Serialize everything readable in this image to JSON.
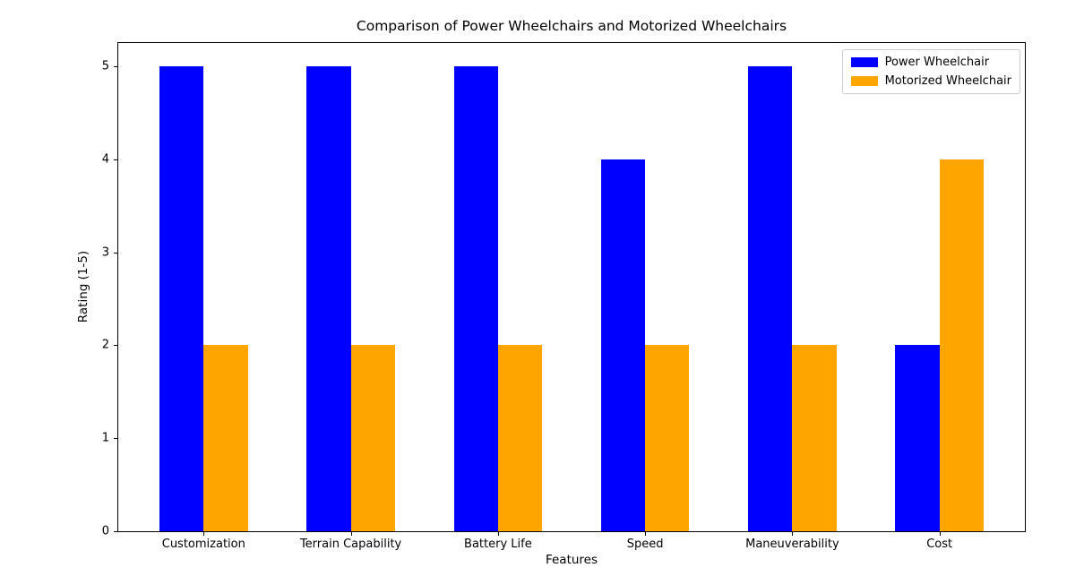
{
  "chart_data": {
    "type": "bar",
    "title": "Comparison of Power Wheelchairs and Motorized Wheelchairs",
    "xlabel": "Features",
    "ylabel": "Rating (1-5)",
    "categories": [
      "Customization",
      "Terrain Capability",
      "Battery Life",
      "Speed",
      "Maneuverability",
      "Cost"
    ],
    "series": [
      {
        "name": "Power Wheelchair",
        "color": "#0000ff",
        "values": [
          5,
          5,
          5,
          4,
          5,
          2
        ]
      },
      {
        "name": "Motorized Wheelchair",
        "color": "#ffa500",
        "values": [
          2,
          2,
          2,
          2,
          2,
          4
        ]
      }
    ],
    "yticks": [
      0,
      1,
      2,
      3,
      4,
      5
    ],
    "ylim": [
      0,
      5.25
    ],
    "xlim": [
      -0.58,
      5.58
    ],
    "bar_width": 0.3,
    "grid": false,
    "legend_position": "upper right",
    "background_color": "#ffffff",
    "axis_color": "#000000"
  }
}
